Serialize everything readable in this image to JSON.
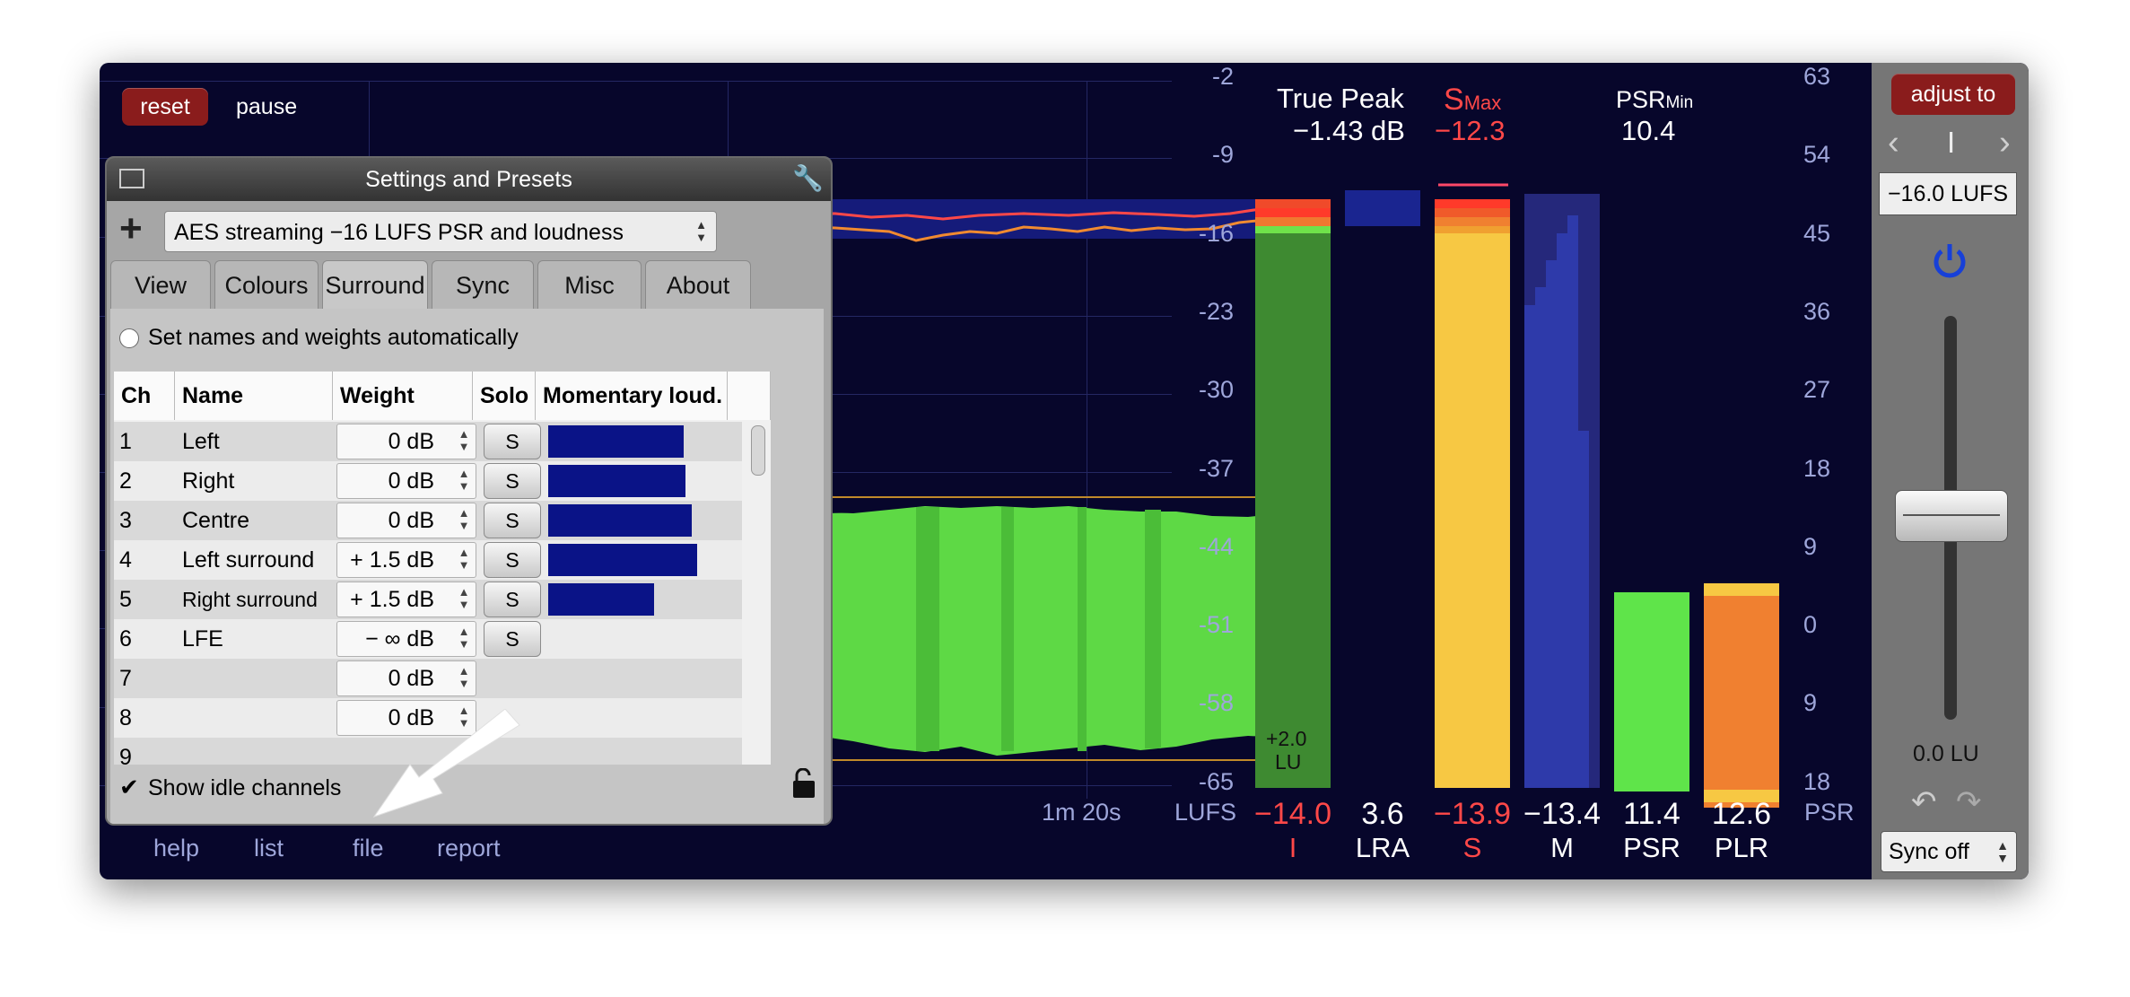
{
  "toolbar": {
    "reset_label": "reset",
    "pause_label": "pause"
  },
  "history": {
    "time_label": "1m 20s"
  },
  "lufs_scale": {
    "unit": "LUFS",
    "ticks": [
      "-2",
      "-9",
      "-16",
      "-23",
      "-30",
      "-37",
      "-44",
      "-51",
      "-58",
      "-65"
    ]
  },
  "psr_scale": {
    "unit": "PSR",
    "ticks": [
      "63",
      "54",
      "45",
      "36",
      "27",
      "18",
      "9",
      "0",
      "9",
      "18"
    ]
  },
  "header": {
    "true_peak_title": "True Peak",
    "true_peak_value": "−1.43 dB",
    "smax_s": "S",
    "smax_sub": "Max",
    "smax_value": "−12.3",
    "psrmin_main": "PSR",
    "psrmin_sub": "Min",
    "psrmin_value": "10.4"
  },
  "meters": {
    "integrated_inner_value": "+2.0",
    "integrated_inner_unit": "LU",
    "bottom": [
      {
        "value": "−14.0",
        "name": "I",
        "color": "#ff4848"
      },
      {
        "value": "3.6",
        "name": "LRA",
        "color": "#ffffff"
      },
      {
        "value": "−13.9",
        "name": "S",
        "color": "#ff4848"
      },
      {
        "value": "−13.4",
        "name": "M",
        "color": "#ffffff"
      },
      {
        "value": "11.4",
        "name": "PSR",
        "color": "#ffffff"
      },
      {
        "value": "12.6",
        "name": "PLR",
        "color": "#ffffff"
      }
    ]
  },
  "right_panel": {
    "adjust_label": "adjust to",
    "nav_divider": "I",
    "target_value": "−16.0 LUFS",
    "gain_value": "0.0 LU",
    "sync_value": "Sync off"
  },
  "settings": {
    "title": "Settings and Presets",
    "preset_value": "AES streaming −16 LUFS PSR and loudness",
    "tabs": [
      "View",
      "Colours",
      "Surround",
      "Sync",
      "Misc",
      "About"
    ],
    "active_tab": "Surround",
    "auto_names_label": "Set names and weights automatically",
    "columns": [
      "Ch",
      "Name",
      "Weight",
      "Solo",
      "Momentary loud."
    ],
    "rows": [
      {
        "ch": "1",
        "name": "Left",
        "weight": "0 dB",
        "solo": "S",
        "level": 0.72
      },
      {
        "ch": "2",
        "name": "Right",
        "weight": "0 dB",
        "solo": "S",
        "level": 0.73
      },
      {
        "ch": "3",
        "name": "Centre",
        "weight": "0 dB",
        "solo": "S",
        "level": 0.76
      },
      {
        "ch": "4",
        "name": "Left surround",
        "weight": "+ 1.5 dB",
        "solo": "S",
        "level": 0.79
      },
      {
        "ch": "5",
        "name": "Right surround",
        "weight": "+ 1.5 dB",
        "solo": "S",
        "level": 0.56
      },
      {
        "ch": "6",
        "name": "LFE",
        "weight": "− ∞ dB",
        "solo": "S",
        "level": 0
      },
      {
        "ch": "7",
        "name": "",
        "weight": "0 dB",
        "solo": "",
        "level": 0
      },
      {
        "ch": "8",
        "name": "",
        "weight": "0 dB",
        "solo": "",
        "level": 0
      },
      {
        "ch": "9",
        "name": "",
        "weight": "",
        "solo": "",
        "level": 0
      }
    ],
    "show_idle_label": "Show idle channels",
    "show_idle_checked": "✔"
  },
  "bottom_menu": {
    "help": "help",
    "list": "list",
    "file": "file",
    "report": "report"
  }
}
